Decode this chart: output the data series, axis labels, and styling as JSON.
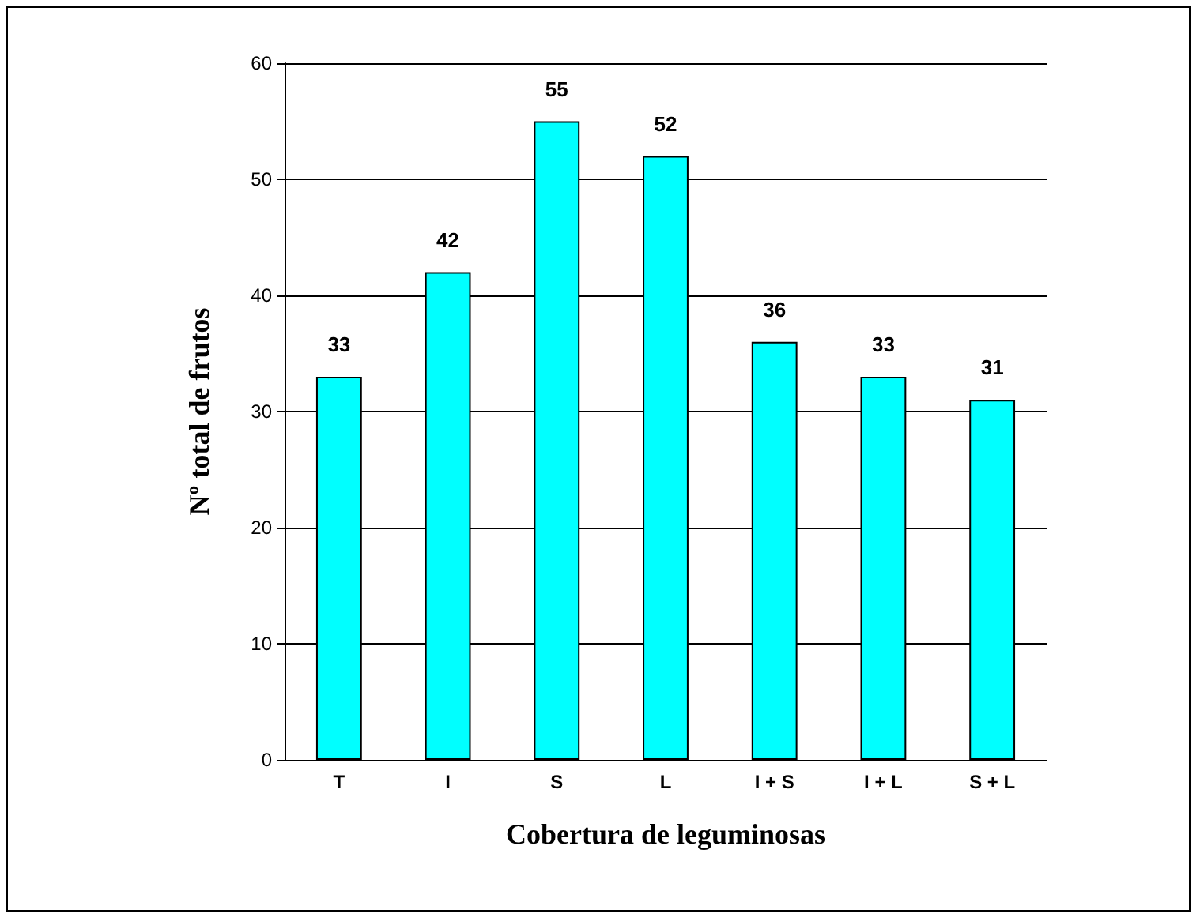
{
  "chart_data": {
    "type": "bar",
    "xlabel": "Cobertura de leguminosas",
    "ylabel": "Nº total de frutos",
    "categories": [
      "T",
      "I",
      "S",
      "L",
      "I + S",
      "I + L",
      "S + L"
    ],
    "values": [
      33,
      42,
      55,
      52,
      36,
      33,
      31
    ],
    "color": "#00ffff",
    "ylim": [
      0,
      60
    ],
    "yticks": [
      0,
      10,
      20,
      30,
      40,
      50,
      60
    ],
    "grid": "y",
    "data_labels": true
  }
}
